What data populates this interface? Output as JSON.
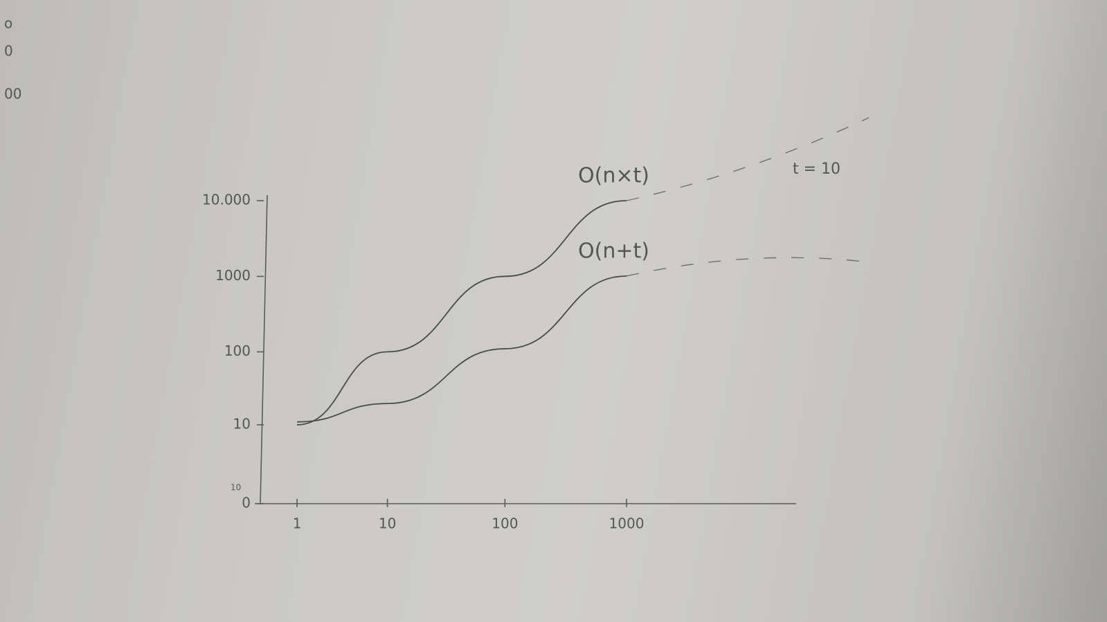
{
  "chart_data": {
    "type": "line",
    "x": [
      1,
      10,
      100,
      1000
    ],
    "series": [
      {
        "name": "O(n×t)",
        "color": "#4a4a4a",
        "values": [
          10,
          100,
          1000,
          10000
        ]
      },
      {
        "name": "O(n+t)",
        "color": "#4a4a4a",
        "values": [
          11,
          20,
          110,
          1010
        ]
      }
    ],
    "xlim": [
      0,
      1000
    ],
    "ylim": [
      0,
      10000
    ],
    "xticks": [
      1,
      10,
      100,
      1000
    ],
    "yticks": [
      0,
      10,
      100,
      1000,
      {
        "value": 10000,
        "label": "10.000"
      }
    ],
    "scale": "symlog",
    "annotations": [
      "t = 10",
      "10"
    ],
    "margin_notes": [
      "o",
      "0",
      "00"
    ]
  }
}
